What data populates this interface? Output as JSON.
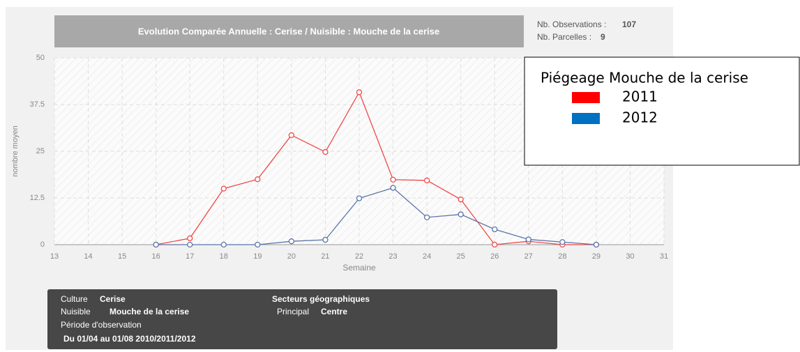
{
  "chart_data": {
    "type": "line",
    "title": "Evolution Comparée Annuelle : Cerise / Nuisible : Mouche de la cerise",
    "x_label": "Semaine",
    "y_label": "nombre moyen",
    "x": [
      16,
      17,
      18,
      19,
      20,
      21,
      22,
      23,
      24,
      25,
      26,
      27,
      28,
      29
    ],
    "series": [
      {
        "name": "2011",
        "color": "#f04848",
        "legend_color": "#ff0000",
        "values": [
          0,
          1.7,
          15,
          17.5,
          29.3,
          24.8,
          40.8,
          17.4,
          17.2,
          12.1,
          0,
          0.9,
          0,
          0
        ]
      },
      {
        "name": "2012",
        "color": "#5a74a8",
        "legend_color": "#0070c0",
        "values": [
          0,
          0,
          0,
          0,
          0.9,
          1.3,
          12.4,
          15.2,
          7.3,
          8.1,
          4.1,
          1.4,
          0.7,
          0
        ]
      }
    ],
    "xlim": [
      13,
      31
    ],
    "xticks": [
      13,
      14,
      15,
      16,
      17,
      18,
      19,
      20,
      21,
      22,
      23,
      24,
      25,
      26,
      27,
      28,
      29,
      30,
      31
    ],
    "ylim": [
      0,
      50
    ],
    "yticks": [
      0,
      12.5,
      25,
      37.5,
      50
    ],
    "grid": true,
    "legend_title": "Piégeage Mouche de la cerise"
  },
  "stats": [
    {
      "label": "Nb. Observations :",
      "value": "107"
    },
    {
      "label": "Nb. Parcelles :",
      "value": "9"
    }
  ],
  "info": {
    "culture_label": "Culture",
    "culture": "Cerise",
    "nuisible_label": "Nuisible",
    "nuisible": "Mouche de la cerise",
    "periode_label": "Période d'observation",
    "periode": "Du 01/04 au 01/08 2010/2011/2012",
    "secteurs": "Secteurs géographiques",
    "principal_label": "Principal",
    "principal": "Centre"
  }
}
